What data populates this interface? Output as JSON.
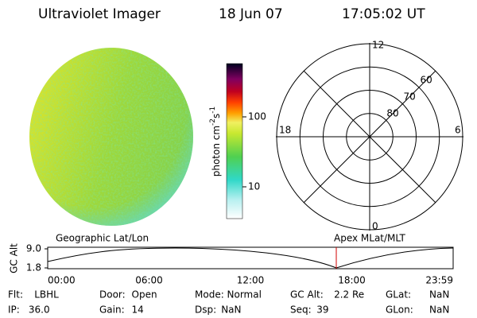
{
  "header": {
    "title": "Ultraviolet Imager",
    "date": "18 Jun 07",
    "time": "17:05:02 UT"
  },
  "colorbar": {
    "label": {
      "base": "photon cm",
      "exp1": "-2",
      "mid": "s",
      "exp2": "-1"
    },
    "ticks": [
      100,
      10
    ]
  },
  "polar": {
    "mlt_labels": {
      "top": "12",
      "right": "6",
      "bottom": "0",
      "left": "18"
    },
    "lat_labels": [
      60,
      70,
      80
    ],
    "rlim": [
      90,
      50
    ]
  },
  "altitude": {
    "ylabel": "GC Alt",
    "left_title": "Geographic Lat/Lon",
    "right_title": "Apex MLat/MLT",
    "yticks": [
      {
        "value": 9.0,
        "label": "9.0"
      },
      {
        "value": 1.8,
        "label": "1.8"
      }
    ],
    "xticks": [
      "00:00",
      "06:00",
      "12:00",
      "18:00",
      "23:59"
    ]
  },
  "info": [
    [
      {
        "label": "Flt:",
        "value": "LBHL"
      },
      {
        "label": "Door:",
        "value": "Open"
      },
      {
        "label": "Mode:",
        "value": "Normal"
      },
      {
        "label": "GC Alt:",
        "value": "2.2 Re"
      },
      {
        "label": "GLat:",
        "value": "NaN"
      }
    ],
    [
      {
        "label": "IP:",
        "value": "36.0"
      },
      {
        "label": "Gain:",
        "value": "14"
      },
      {
        "label": "Dsp:",
        "value": "NaN"
      },
      {
        "label": "Seq:",
        "value": "39"
      },
      {
        "label": "GLon:",
        "value": "NaN"
      }
    ]
  ]
}
